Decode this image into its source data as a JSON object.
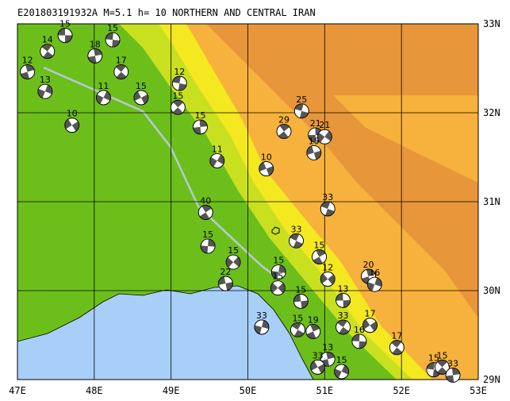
{
  "chart_data": {
    "type": "focal-map",
    "title": "E201803191932A M=5.1 h= 10 NORTHERN AND CENTRAL IRAN",
    "xlim": [
      47,
      53
    ],
    "ylim": [
      29,
      33
    ],
    "xticks": [
      {
        "value": 47,
        "label": "47E"
      },
      {
        "value": 48,
        "label": "48E"
      },
      {
        "value": 49,
        "label": "49E"
      },
      {
        "value": 50,
        "label": "50E"
      },
      {
        "value": 51,
        "label": "51E"
      },
      {
        "value": 52,
        "label": "52E"
      },
      {
        "value": 53,
        "label": "53E"
      }
    ],
    "yticks": [
      {
        "value": 29,
        "label": "29N"
      },
      {
        "value": 30,
        "label": "30N"
      },
      {
        "value": 31,
        "label": "31N"
      },
      {
        "value": 32,
        "label": "32N"
      },
      {
        "value": 33,
        "label": "33N"
      }
    ],
    "events": [
      {
        "lon": 47.62,
        "lat": 32.87,
        "depth": 15
      },
      {
        "lon": 47.39,
        "lat": 32.69,
        "depth": 14
      },
      {
        "lon": 47.13,
        "lat": 32.46,
        "depth": 12
      },
      {
        "lon": 47.36,
        "lat": 32.24,
        "depth": 13
      },
      {
        "lon": 47.71,
        "lat": 31.86,
        "depth": 10
      },
      {
        "lon": 48.24,
        "lat": 32.82,
        "depth": 15
      },
      {
        "lon": 48.35,
        "lat": 32.46,
        "depth": 17
      },
      {
        "lon": 48.01,
        "lat": 32.64,
        "depth": 18
      },
      {
        "lon": 48.12,
        "lat": 32.17,
        "depth": 11
      },
      {
        "lon": 48.61,
        "lat": 32.17,
        "depth": 15
      },
      {
        "lon": 49.11,
        "lat": 32.33,
        "depth": 12
      },
      {
        "lon": 49.09,
        "lat": 32.06,
        "depth": 15
      },
      {
        "lon": 49.38,
        "lat": 31.84,
        "depth": 15
      },
      {
        "lon": 49.6,
        "lat": 31.46,
        "depth": 11
      },
      {
        "lon": 50.24,
        "lat": 31.37,
        "depth": 10
      },
      {
        "lon": 50.7,
        "lat": 32.02,
        "depth": 25
      },
      {
        "lon": 50.47,
        "lat": 31.79,
        "depth": 29
      },
      {
        "lon": 50.88,
        "lat": 31.75,
        "depth": 21
      },
      {
        "lon": 51.0,
        "lat": 31.73,
        "depth": 21
      },
      {
        "lon": 50.86,
        "lat": 31.55,
        "depth": 15
      },
      {
        "lon": 51.04,
        "lat": 30.92,
        "depth": 33
      },
      {
        "lon": 49.45,
        "lat": 30.88,
        "depth": 40
      },
      {
        "lon": 49.48,
        "lat": 30.5,
        "depth": 15
      },
      {
        "lon": 49.81,
        "lat": 30.32,
        "depth": 15
      },
      {
        "lon": 49.71,
        "lat": 30.08,
        "depth": 22
      },
      {
        "lon": 50.63,
        "lat": 30.56,
        "depth": 33
      },
      {
        "lon": 50.93,
        "lat": 30.38,
        "depth": 15
      },
      {
        "lon": 50.4,
        "lat": 30.21,
        "depth": 15
      },
      {
        "lon": 50.39,
        "lat": 30.03,
        "depth": 15
      },
      {
        "lon": 50.69,
        "lat": 29.88,
        "depth": 15
      },
      {
        "lon": 50.65,
        "lat": 29.56,
        "depth": 15
      },
      {
        "lon": 50.85,
        "lat": 29.54,
        "depth": 19
      },
      {
        "lon": 50.18,
        "lat": 29.59,
        "depth": 33
      },
      {
        "lon": 51.04,
        "lat": 30.13,
        "depth": 12
      },
      {
        "lon": 51.24,
        "lat": 29.89,
        "depth": 13
      },
      {
        "lon": 51.24,
        "lat": 29.59,
        "depth": 33
      },
      {
        "lon": 51.57,
        "lat": 30.16,
        "depth": 20
      },
      {
        "lon": 51.65,
        "lat": 30.07,
        "depth": 16
      },
      {
        "lon": 51.59,
        "lat": 29.61,
        "depth": 17
      },
      {
        "lon": 51.45,
        "lat": 29.43,
        "depth": 16
      },
      {
        "lon": 51.94,
        "lat": 29.36,
        "depth": 17
      },
      {
        "lon": 51.04,
        "lat": 29.23,
        "depth": 13
      },
      {
        "lon": 51.22,
        "lat": 29.09,
        "depth": 15
      },
      {
        "lon": 50.91,
        "lat": 29.14,
        "depth": 33
      },
      {
        "lon": 52.42,
        "lat": 29.11,
        "depth": 15
      },
      {
        "lon": 52.53,
        "lat": 29.14,
        "depth": 15
      },
      {
        "lon": 52.67,
        "lat": 29.05,
        "depth": 33
      }
    ]
  }
}
